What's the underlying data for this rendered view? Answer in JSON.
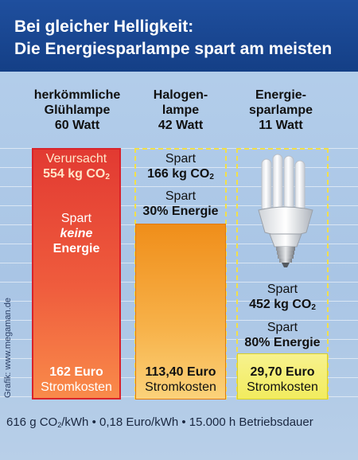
{
  "header": {
    "line1": "Bei gleicher Helligkeit:",
    "line2": "Die Energiesparlampe spart am meisten"
  },
  "credit": "Grafik: www.megaman.de",
  "footer": {
    "co2_value": "616 g CO",
    "co2_sub": "2",
    "rest": "/kWh • 0,18 Euro/kWh • 15.000 h Betriebsdauer"
  },
  "co2_sub": "2",
  "lamp_icon": "energy-saving-bulb-icon",
  "chart_data": {
    "type": "bar",
    "categories": [
      "herkömmliche Glühlampe 60 Watt",
      "Halogenlampe 42 Watt",
      "Energiesparlampe 11 Watt"
    ],
    "values": [
      162,
      113.4,
      29.7
    ],
    "unit": "Euro Stromkosten",
    "ylim": [
      0,
      162
    ],
    "grid": true,
    "colors": [
      "#e23a32",
      "#f4a236",
      "#f4ef6e"
    ],
    "lamps": [
      {
        "name_lines": [
          "herkömmliche",
          "Glühlampe",
          "60 Watt"
        ],
        "cost_value": "162 Euro",
        "cost_label": "Stromkosten",
        "co2_prefix": "Verursacht",
        "co2_amount": "554 kg CO",
        "saving_prefix": "Spart",
        "saving_emph": "keine",
        "saving_word": "Energie"
      },
      {
        "name_lines": [
          "Halogen-",
          "lampe",
          "42 Watt"
        ],
        "cost_value": "113,40 Euro",
        "cost_label": "Stromkosten",
        "co2_prefix": "Spart",
        "co2_amount": "166 kg CO",
        "saving_prefix": "Spart",
        "saving_amount": "30% Energie"
      },
      {
        "name_lines": [
          "Energie-",
          "sparlampe",
          "11 Watt"
        ],
        "cost_value": "29,70 Euro",
        "cost_label": "Stromkosten",
        "co2_prefix": "Spart",
        "co2_amount": "452 kg CO",
        "saving_prefix": "Spart",
        "saving_amount": "80% Energie"
      }
    ]
  }
}
